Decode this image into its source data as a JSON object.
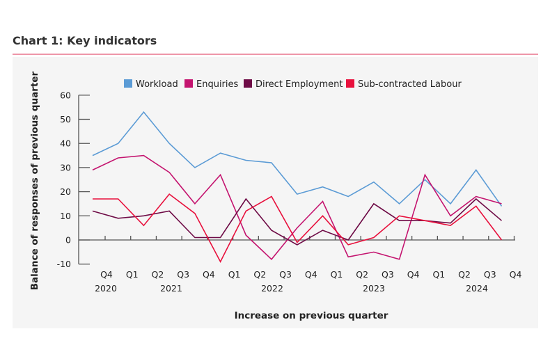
{
  "title": "Chart 1: Key indicators",
  "chart_data": {
    "type": "line",
    "title": "Chart 1: Key indicators",
    "xlabel": "Increase on previous quarter",
    "ylabel": "Balance of responses of previous quarter",
    "ylim": [
      -10,
      60
    ],
    "yticks": [
      -10,
      0,
      10,
      20,
      30,
      40,
      50,
      60
    ],
    "x": [
      "Q4 2020",
      "Q1 2021",
      "Q2 2021",
      "Q3 2021",
      "Q4 2021",
      "Q1 2022",
      "Q2 2022",
      "Q3 2022",
      "Q4 2022",
      "Q1 2023",
      "Q2 2023",
      "Q3 2023",
      "Q4 2023",
      "Q1 2024",
      "Q2 2024",
      "Q3 2024",
      "Q4 2024"
    ],
    "quarter_labels": [
      "Q4",
      "Q1",
      "Q2",
      "Q3",
      "Q4",
      "Q1",
      "Q2",
      "Q3",
      "Q4",
      "Q1",
      "Q2",
      "Q3",
      "Q4",
      "Q1",
      "Q2",
      "Q3",
      "Q4"
    ],
    "year_labels": [
      "2020",
      "2021",
      "2022",
      "2023",
      "2024"
    ],
    "grid": false,
    "legend_position": "top",
    "series": [
      {
        "name": "Workload",
        "color": "#5b9bd5",
        "values": [
          35,
          40,
          53,
          40,
          30,
          36,
          33,
          32,
          19,
          22,
          18,
          24,
          15,
          25,
          15,
          29,
          14
        ]
      },
      {
        "name": "Enquiries",
        "color": "#c4146f",
        "values": [
          29,
          34,
          35,
          28,
          15,
          27,
          2,
          -8,
          5,
          16,
          -7,
          -5,
          -8,
          27,
          10,
          18,
          15
        ]
      },
      {
        "name": "Direct Employment",
        "color": "#6e0b46",
        "values": [
          12,
          9,
          10,
          12,
          1,
          1,
          17,
          4,
          -2,
          4,
          0,
          15,
          8,
          8,
          7,
          17,
          8
        ]
      },
      {
        "name": "Sub-contracted Labour",
        "color": "#e8103c",
        "values": [
          17,
          17,
          6,
          19,
          11,
          -9,
          12,
          18,
          -1,
          10,
          -2,
          1,
          10,
          8,
          6,
          14,
          0
        ]
      }
    ]
  }
}
